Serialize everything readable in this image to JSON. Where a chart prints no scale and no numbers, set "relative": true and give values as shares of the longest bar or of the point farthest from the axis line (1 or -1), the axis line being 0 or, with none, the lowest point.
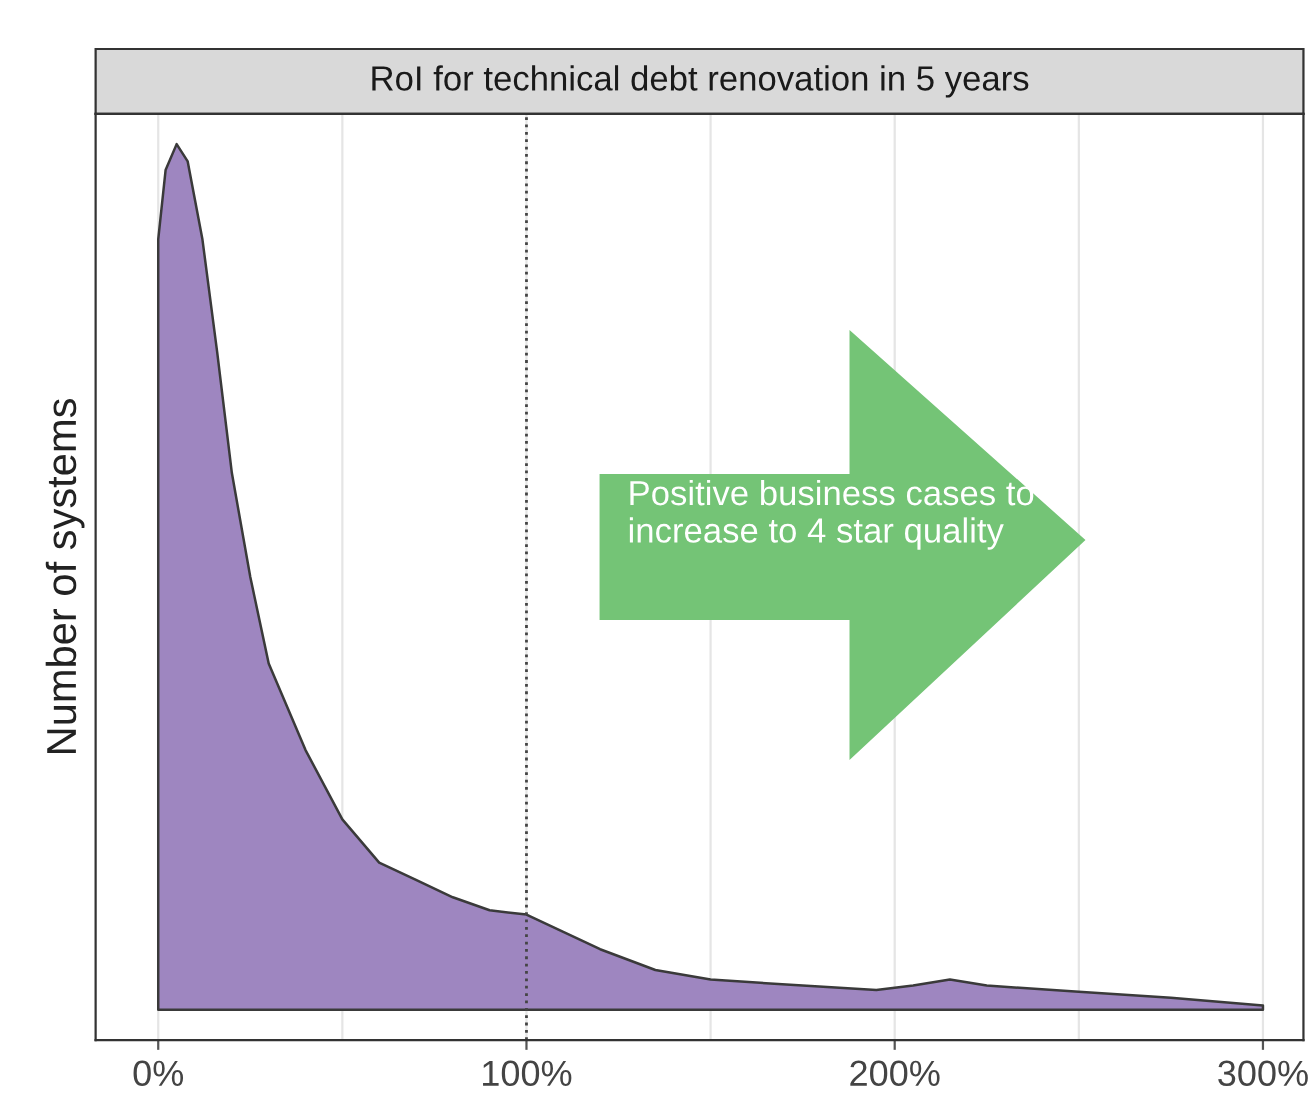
{
  "chart_data": {
    "type": "area",
    "title": "RoI for technical debt renovation in 5 years",
    "ylabel": "Number of systems",
    "relative": true,
    "x": [
      0,
      2,
      5,
      8,
      12,
      16,
      20,
      25,
      30,
      35,
      40,
      50,
      60,
      70,
      80,
      90,
      100,
      110,
      120,
      135,
      150,
      175,
      195,
      205,
      215,
      225,
      250,
      275,
      300
    ],
    "series": [
      {
        "color": "#9e86c0",
        "values": [
          0.89,
          0.97,
          1.0,
          0.98,
          0.89,
          0.76,
          0.62,
          0.5,
          0.4,
          0.35,
          0.3,
          0.22,
          0.17,
          0.15,
          0.13,
          0.115,
          0.11,
          0.09,
          0.07,
          0.046,
          0.035,
          0.028,
          0.023,
          0.028,
          0.035,
          0.028,
          0.021,
          0.014,
          0.005
        ]
      }
    ],
    "xlim": [
      -17,
      311
    ],
    "xticks": [
      {
        "value": 0,
        "label": "0%"
      },
      {
        "value": 100,
        "label": "100%"
      },
      {
        "value": 200,
        "label": "200%"
      },
      {
        "value": 300,
        "label": "300%"
      }
    ],
    "ref_lines": [
      {
        "axis": "x",
        "value": 100,
        "label": null,
        "line_style": "dotted",
        "color": "#444444"
      }
    ],
    "grid": "x",
    "annotations": [
      "Positive business cases to increase to 4 star quality"
    ]
  }
}
